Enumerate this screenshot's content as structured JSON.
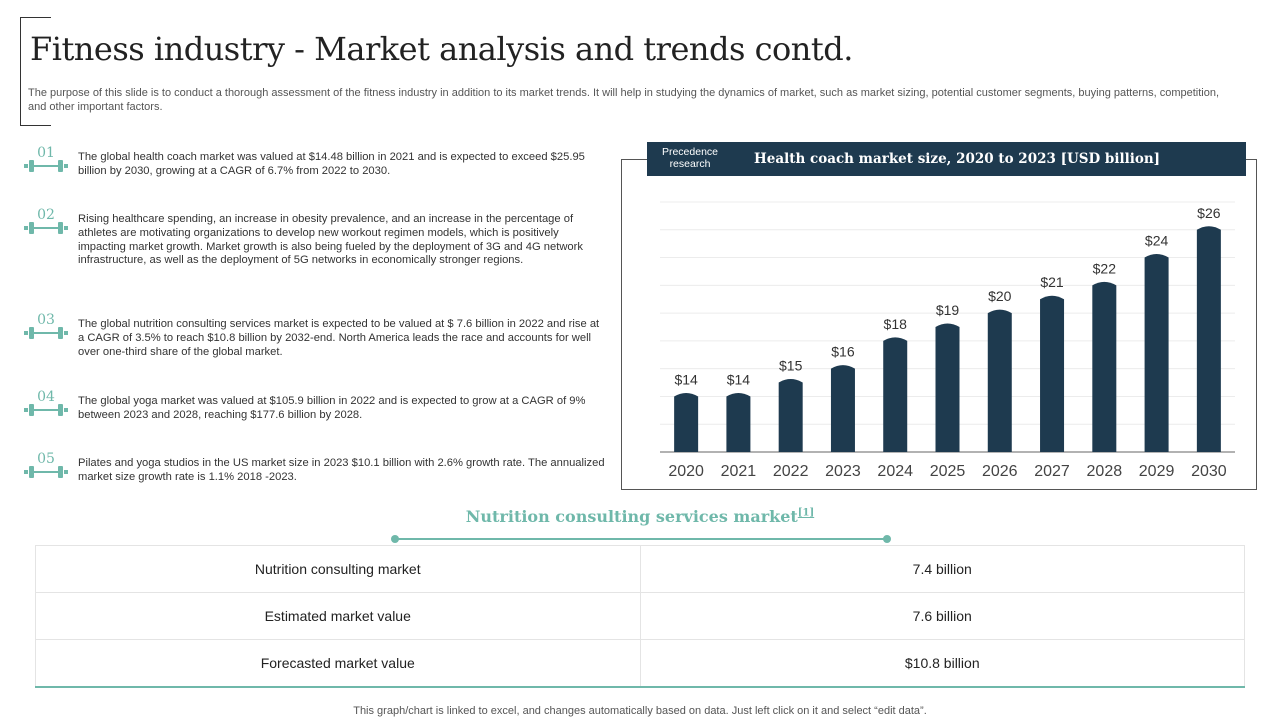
{
  "page": {
    "title": "Fitness industry - Market analysis and trends contd.",
    "subtitle": "The purpose of this slide is to conduct a thorough assessment of the fitness industry in addition to its market trends. It will help in studying the dynamics of market, such as market sizing, potential customer segments, buying patterns, competition, and other important factors."
  },
  "points": [
    {
      "num": "01",
      "text": "The global health coach market was valued at  $14.48 billion in 2021 and is expected to exceed $25.95 billion by 2030, growing at a CAGR of 6.7% from 2022 to 2030."
    },
    {
      "num": "02",
      "text": "Rising healthcare spending, an increase in obesity prevalence, and an increase in the percentage of athletes are motivating organizations to develop new workout regimen models, which is positively impacting market growth. Market growth is also being fueled by the deployment of 3G and 4G network infrastructure, as well as the deployment of 5G networks in economically stronger regions."
    },
    {
      "num": "03",
      "text": "The global nutrition consulting services market is expected to be valued at $ 7.6 billion in 2022 and rise at a CAGR of 3.5% to reach $10.8 billion by 2032-end. North America leads the race and accounts for well over one-third share of the global market."
    },
    {
      "num": "04",
      "text": "The global yoga market was valued at $105.9 billion in 2022 and is expected to grow at a CAGR of 9% between 2023 and 2028, reaching $177.6 billion by 2028."
    },
    {
      "num": "05",
      "text": "Pilates and yoga studios in the US market size in 2023 $10.1 billion with 2.6% growth rate.  The annualized market size growth rate is 1.1% 2018 -2023."
    }
  ],
  "chart_header": {
    "source": "Precedence research",
    "title": "Health coach market size, 2020 to 2023  [USD billion]"
  },
  "chart_data": {
    "type": "bar",
    "title": "Health coach market size, 2020 to 2023  [USD billion]",
    "categories": [
      "2020",
      "2021",
      "2022",
      "2023",
      "2024",
      "2025",
      "2026",
      "2027",
      "2028",
      "2029",
      "2030"
    ],
    "values": [
      14,
      14,
      15,
      16,
      18,
      19,
      20,
      21,
      22,
      24,
      26
    ],
    "data_labels": [
      "$14",
      "$14",
      "$15",
      "$16",
      "$18",
      "$19",
      "$20",
      "$21",
      "$22",
      "$24",
      "$26"
    ],
    "ylim": [
      10,
      28
    ],
    "grid": true,
    "bar_color": "#1e3a4f"
  },
  "nutrition": {
    "heading": "Nutrition consulting services market",
    "ref": "[1]",
    "rows": [
      {
        "label": "Nutrition  consulting market",
        "value": "7.4 billion"
      },
      {
        "label": "Estimated market value",
        "value": "7.6 billion"
      },
      {
        "label": "Forecasted market value",
        "value": "$10.8 billion"
      }
    ]
  },
  "footer": {
    "note": "This graph/chart is linked to excel,  and changes automatically based on data. Just left click on it and select “edit data”."
  },
  "colors": {
    "accent": "#6fb8aa",
    "navy": "#1e3a4f"
  }
}
